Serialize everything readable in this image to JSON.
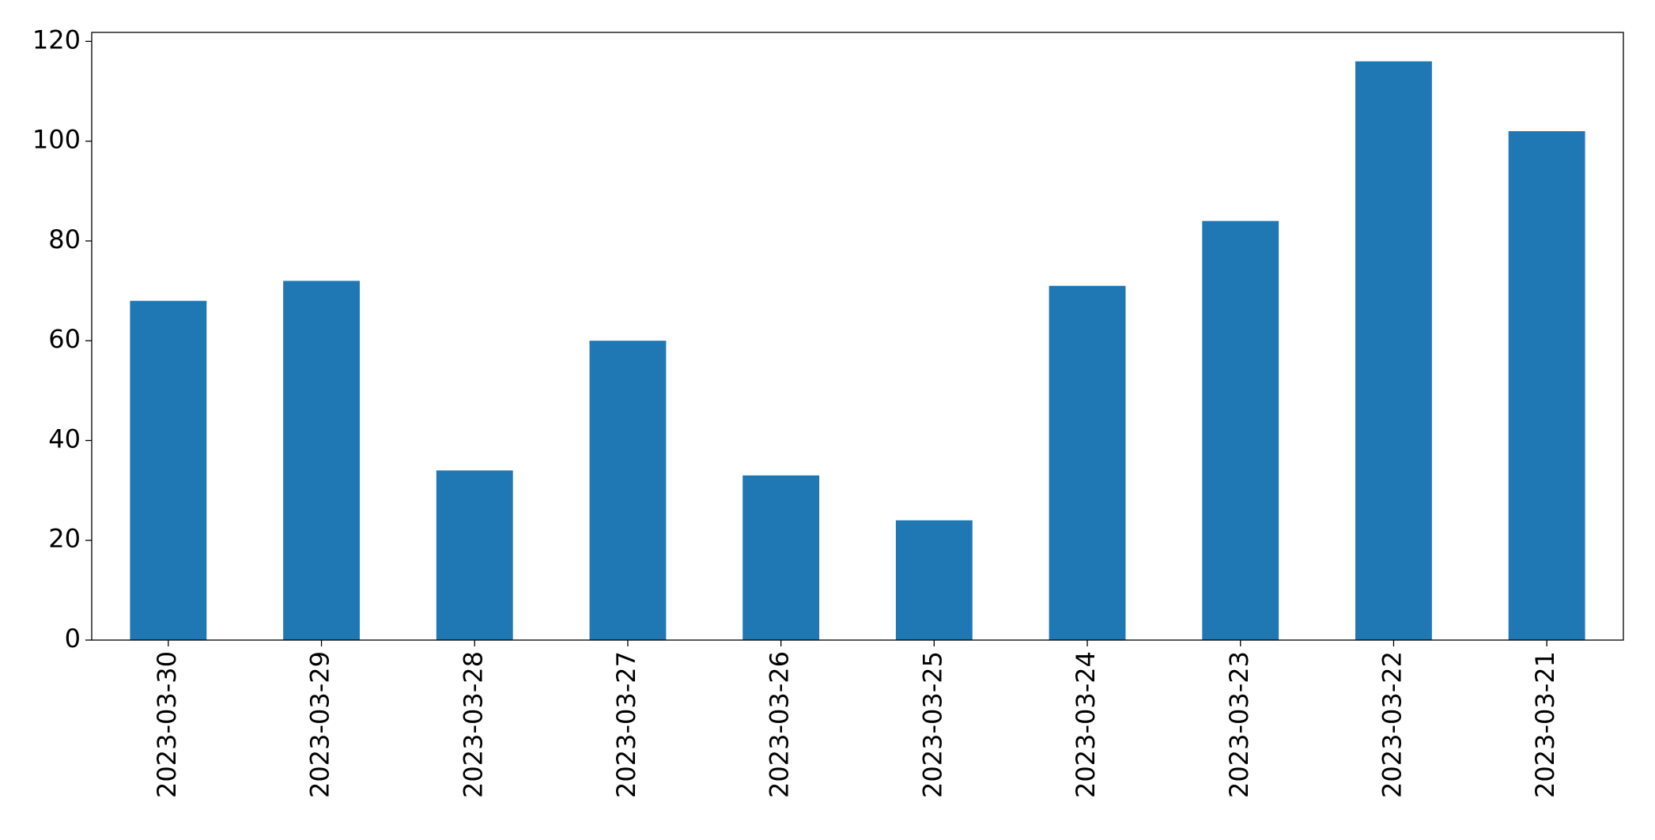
{
  "chart_data": {
    "type": "bar",
    "categories": [
      "2023-03-30",
      "2023-03-29",
      "2023-03-28",
      "2023-03-27",
      "2023-03-26",
      "2023-03-25",
      "2023-03-24",
      "2023-03-23",
      "2023-03-22",
      "2023-03-21"
    ],
    "values": [
      68,
      72,
      34,
      60,
      33,
      24,
      71,
      84,
      116,
      102
    ],
    "color": "#1f77b4",
    "ylim": [
      0,
      121.8
    ],
    "yticks": [
      0,
      20,
      40,
      60,
      80,
      100,
      120
    ],
    "grid": false
  }
}
